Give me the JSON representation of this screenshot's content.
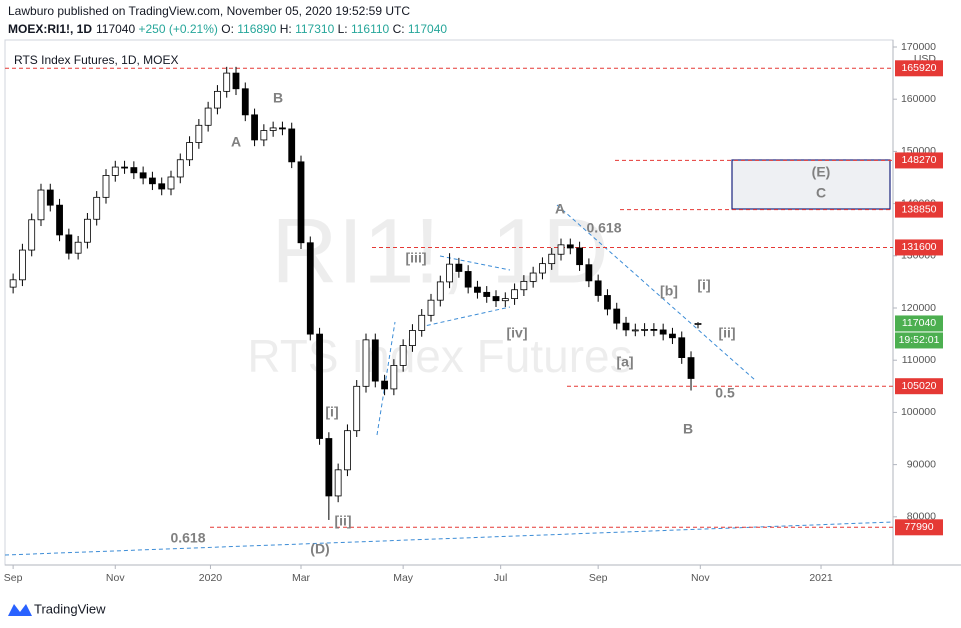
{
  "header": {
    "publisher": "Lawburo published on TradingView.com, November 05, 2020 19:52:59 UTC",
    "symbol": "MOEX:RI1!, 1D",
    "change": "+250 (+0.21%)",
    "ohlc_labels": [
      "O:",
      "H:",
      "L:",
      "C:"
    ]
  },
  "chart_data": {
    "type": "candlestick",
    "title": "RTS Index Futures, 1D, MOEX",
    "watermark": "RI1!, 1D",
    "watermark_subtitle": "RTS Index Futures",
    "currency": "USD",
    "time_label": "19:52:01",
    "x": [
      0,
      4,
      8,
      12,
      16,
      20,
      24,
      28,
      32,
      36,
      40,
      44,
      48,
      52,
      56,
      60,
      64,
      68,
      72,
      76,
      80,
      84,
      88,
      92,
      96,
      100,
      104,
      108,
      112,
      116,
      120,
      124,
      128,
      132,
      136,
      140,
      144,
      148,
      152,
      156,
      160,
      164,
      168,
      172,
      176,
      180,
      184,
      188,
      192,
      196,
      200,
      204,
      208,
      212,
      216,
      220,
      224,
      228,
      232,
      236,
      240,
      244,
      248,
      252,
      256,
      260,
      264,
      268,
      272,
      276,
      280,
      284,
      288,
      292,
      295
    ],
    "open": [
      124000,
      125400,
      131100,
      136900,
      142600,
      139700,
      134000,
      130500,
      132600,
      137000,
      141200,
      145400,
      147000,
      146900,
      145900,
      144900,
      143800,
      142800,
      145100,
      148400,
      151700,
      155000,
      158300,
      161500,
      165000,
      162000,
      157000,
      152200,
      154000,
      154500,
      154300,
      148000,
      132500,
      115000,
      95000,
      84000,
      89000,
      96500,
      105000,
      113900,
      106000,
      104500,
      109000,
      112800,
      115700,
      118600,
      121500,
      125000,
      128400,
      127000,
      124000,
      123000,
      122200,
      121400,
      121800,
      123500,
      125100,
      126700,
      128500,
      130300,
      132100,
      131500,
      128300,
      125200,
      122400,
      119800,
      117100,
      115800,
      115800,
      115900,
      115800,
      115000,
      114300,
      110500,
      116890
    ],
    "high": [
      126600,
      132300,
      138100,
      143800,
      143800,
      140900,
      135200,
      133800,
      138200,
      142400,
      146600,
      148200,
      148200,
      148100,
      147100,
      146100,
      145000,
      146300,
      149600,
      152900,
      156200,
      159500,
      162700,
      166200,
      166200,
      163200,
      158200,
      155200,
      155700,
      155700,
      155500,
      149200,
      133700,
      116200,
      96200,
      90200,
      97700,
      106200,
      115100,
      115100,
      107200,
      110200,
      114000,
      116900,
      119800,
      122700,
      126200,
      130500,
      129600,
      128200,
      125200,
      124200,
      123400,
      123000,
      124700,
      126300,
      127900,
      129700,
      131500,
      133300,
      133300,
      132700,
      129500,
      126400,
      123600,
      121000,
      118300,
      117000,
      117100,
      117100,
      117000,
      116200,
      115500,
      111700,
      117310
    ],
    "low": [
      122800,
      124200,
      129900,
      135700,
      138500,
      132800,
      129300,
      129300,
      131400,
      135800,
      140000,
      144200,
      145700,
      144700,
      143700,
      142600,
      141600,
      141600,
      143900,
      147200,
      150500,
      153800,
      157100,
      160300,
      160800,
      155800,
      151000,
      151000,
      152800,
      153100,
      146800,
      131300,
      113800,
      93800,
      79400,
      82800,
      87800,
      95300,
      103800,
      104800,
      103300,
      103300,
      107800,
      111600,
      114500,
      117400,
      120300,
      123800,
      125800,
      122800,
      121800,
      121000,
      120200,
      120200,
      120600,
      122300,
      123900,
      125500,
      127300,
      129100,
      130300,
      127100,
      124000,
      121200,
      118600,
      115900,
      114600,
      114600,
      114600,
      114600,
      113800,
      113100,
      109300,
      104200,
      116110
    ],
    "close": [
      125400,
      131100,
      136900,
      142600,
      139700,
      134000,
      130500,
      132600,
      137000,
      141200,
      145400,
      147000,
      146900,
      145900,
      144900,
      143800,
      142800,
      145100,
      148400,
      151700,
      155000,
      158300,
      161500,
      165000,
      162000,
      157000,
      152200,
      154000,
      154500,
      154300,
      148000,
      132500,
      115000,
      95000,
      84000,
      89000,
      96500,
      105000,
      113900,
      106000,
      104500,
      109000,
      112800,
      115700,
      118600,
      121500,
      125000,
      128400,
      127000,
      124000,
      123000,
      122200,
      121400,
      121800,
      123500,
      125100,
      126700,
      128500,
      130300,
      132100,
      131500,
      128300,
      125200,
      122400,
      119800,
      117100,
      115800,
      115800,
      115900,
      115800,
      115000,
      114300,
      110500,
      106500,
      117040
    ],
    "up_color": "#ffffff",
    "down_color": "#000000",
    "wick_color": "#000000",
    "levels": [
      165920,
      148270,
      138850,
      131600,
      105020,
      77990
    ],
    "level_color": "#e53935",
    "last_color": "#4caf50",
    "annotations": [
      "A",
      "B",
      "[iii]",
      "[iv]",
      "[ii]",
      "[i]",
      "(D)",
      "0.618",
      "A",
      "0.618",
      "[b]",
      "[i]",
      "[ii]",
      "[a]",
      "0.5",
      "B",
      "(E)",
      "C"
    ],
    "xlim": [
      -3.5,
      379
    ],
    "ylim": [
      70770,
      171340
    ],
    "xticks": [
      {
        "value": 0,
        "label": "Sep"
      },
      {
        "value": 44,
        "label": "Nov"
      },
      {
        "value": 85,
        "label": "2020"
      },
      {
        "value": 124,
        "label": "Mar"
      },
      {
        "value": 168,
        "label": "May"
      },
      {
        "value": 210,
        "label": "Jul"
      },
      {
        "value": 252,
        "label": "Sep"
      },
      {
        "value": 296,
        "label": "Nov"
      },
      {
        "value": 348,
        "label": "2021"
      }
    ],
    "yticks": [
      80000,
      90000,
      100000,
      110000,
      120000,
      130000,
      140000,
      150000,
      160000,
      170000
    ]
  },
  "footer": {
    "brand": "TradingView"
  }
}
